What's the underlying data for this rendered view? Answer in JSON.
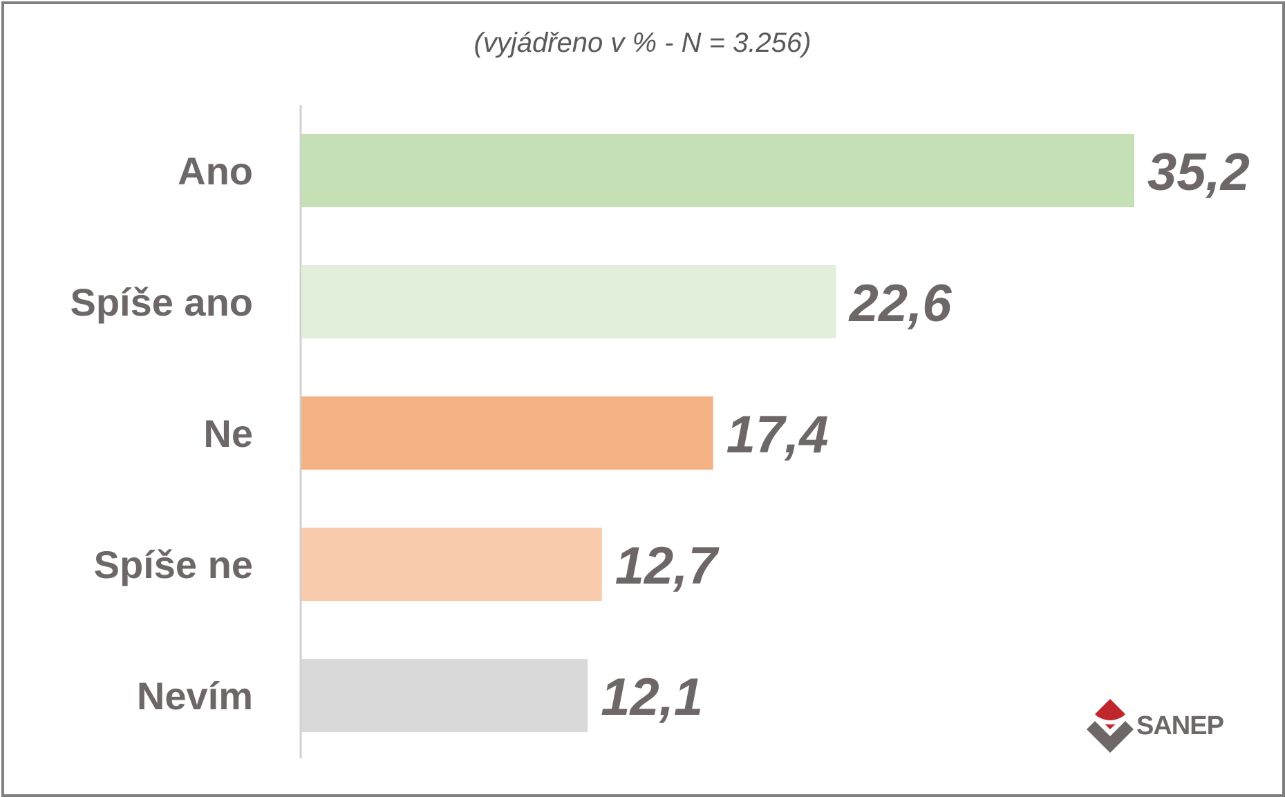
{
  "chart_data": {
    "type": "bar",
    "orientation": "horizontal",
    "subtitle": "(vyjádřeno v % - N = 3.256)",
    "categories": [
      "Ano",
      "Spíše ano",
      "Ne",
      "Spíše ne",
      "Nevím"
    ],
    "values": [
      35.2,
      22.6,
      17.4,
      12.7,
      12.1
    ],
    "value_labels": [
      "35,2",
      "22,6",
      "17,4",
      "12,7",
      "12,1"
    ],
    "colors": [
      "#c5e0b4",
      "#e2efda",
      "#f4b183",
      "#f8cbad",
      "#d9d9d9"
    ],
    "xlim": [
      0,
      35.2
    ],
    "grid": false,
    "legend": "none"
  },
  "logo": {
    "text": "SANEP",
    "icon": "sanep-diamond-logo-icon",
    "colors": {
      "red": "#c0272d",
      "gray": "#6d6767"
    }
  },
  "style": {
    "label_color": "#6d6767",
    "axis_color": "#d0d0d0",
    "frame_color": "#7f7f7f"
  }
}
